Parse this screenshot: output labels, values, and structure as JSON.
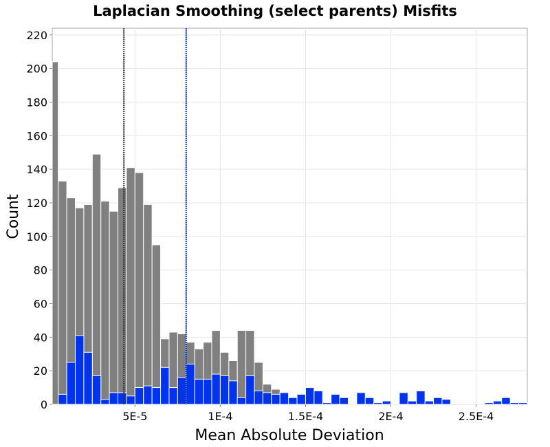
{
  "chart_data": {
    "type": "bar",
    "title": "Laplacian Smoothing (select parents) Misfits",
    "xlabel": "Mean Absolute Deviation",
    "ylabel": "Count",
    "bin_width": 5e-06,
    "xlim": [
      1.5e-06,
      0.00028
    ],
    "ylim": [
      0,
      224
    ],
    "y_ticks": [
      0,
      20,
      40,
      60,
      80,
      100,
      120,
      140,
      160,
      180,
      200,
      220
    ],
    "y_tick_labels": [
      "0",
      "20",
      "40",
      "60",
      "80",
      "100",
      "120",
      "140",
      "160",
      "180",
      "200",
      "220"
    ],
    "x_ticks": [
      5e-05,
      0.0001,
      0.00015,
      0.0002,
      0.00025
    ],
    "x_tick_labels": [
      "5E-5",
      "1E-4",
      "1.5E-4",
      "2E-4",
      "2.5E-4"
    ],
    "grid": true,
    "series": [
      {
        "color": "#808080",
        "x": [
          2.5e-06,
          7.5e-06,
          1.25e-05,
          1.75e-05,
          2.25e-05,
          2.75e-05,
          3.25e-05,
          3.75e-05,
          4.25e-05,
          4.75e-05,
          5.25e-05,
          5.75e-05,
          6.25e-05,
          6.75e-05,
          7.25e-05,
          7.75e-05,
          8.25e-05,
          8.75e-05,
          9.25e-05,
          9.75e-05,
          0.0001025,
          0.0001075,
          0.0001125,
          0.0001175,
          0.0001225,
          0.0001275,
          0.0001325,
          0.0001375
        ],
        "values": [
          204,
          133,
          123,
          117,
          119,
          149,
          121,
          115,
          129,
          141,
          138,
          119,
          95,
          39,
          43,
          42,
          37,
          33,
          37,
          44,
          31,
          26,
          44,
          44,
          25,
          12,
          9,
          6
        ]
      },
      {
        "color": "#0033ee",
        "x": [
          7.5e-06,
          1.25e-05,
          1.75e-05,
          2.25e-05,
          2.75e-05,
          3.25e-05,
          3.75e-05,
          4.25e-05,
          4.75e-05,
          5.25e-05,
          5.75e-05,
          6.25e-05,
          6.75e-05,
          7.25e-05,
          7.75e-05,
          8.25e-05,
          8.75e-05,
          9.25e-05,
          9.75e-05,
          0.0001025,
          0.0001075,
          0.0001125,
          0.0001175,
          0.0001225,
          0.0001275,
          0.0001325,
          0.0001375,
          0.0001425,
          0.0001475,
          0.0001525,
          0.0001575,
          0.0001625,
          0.0001675,
          0.0001725,
          0.0001825,
          0.0001875,
          0.0001925,
          0.0001975,
          0.0002075,
          0.0002125,
          0.0002175,
          0.0002225,
          0.0002275,
          0.0002325,
          0.0002575,
          0.0002625,
          0.0002675,
          0.0002725,
          0.0002775
        ],
        "values": [
          6,
          25,
          41,
          31,
          17,
          3,
          7,
          7,
          5,
          10,
          11,
          10,
          22,
          10,
          16,
          24,
          15,
          15,
          18,
          17,
          14,
          4,
          17,
          8,
          7,
          6,
          7,
          4,
          6,
          10,
          8,
          1,
          6,
          4,
          7,
          4,
          1,
          2,
          7,
          2,
          8,
          2,
          4,
          3,
          1,
          2,
          4,
          1,
          1
        ]
      }
    ],
    "reference_lines": [
      {
        "x": 4.35e-05,
        "color": "#333333",
        "style": "dotted"
      },
      {
        "x": 8e-05,
        "color": "#0033cc",
        "style": "dotted"
      }
    ]
  }
}
